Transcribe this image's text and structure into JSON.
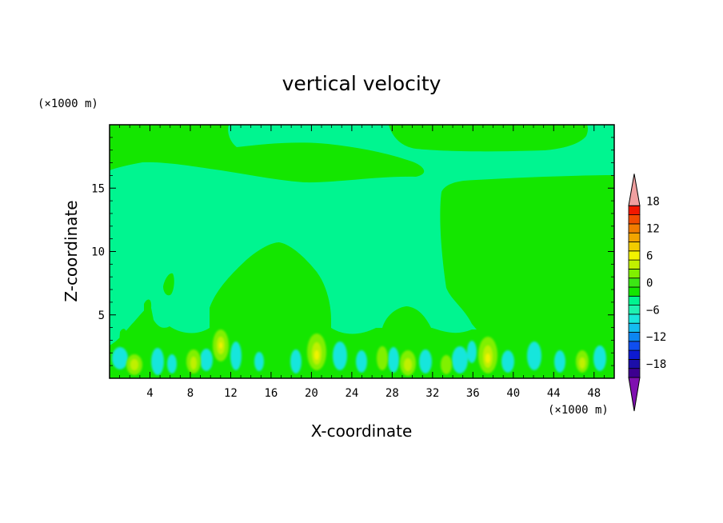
{
  "chart_data": {
    "type": "heatmap",
    "title": "vertical velocity",
    "xlabel": "X-coordinate",
    "ylabel": "Z-coordinate",
    "x_unit": "(×1000 m)",
    "y_unit": "(×1000 m)",
    "xlim": [
      0,
      50
    ],
    "ylim": [
      0,
      20
    ],
    "x_ticks": [
      4,
      8,
      12,
      16,
      20,
      24,
      28,
      32,
      36,
      40,
      44,
      48
    ],
    "x_tick_labels": [
      "4",
      "8",
      "12",
      "16",
      "20",
      "24",
      "28",
      "32",
      "36",
      "40",
      "44",
      "48"
    ],
    "y_ticks": [
      5,
      10,
      15
    ],
    "y_tick_labels": [
      "5",
      "10",
      "15"
    ],
    "colorbar": {
      "range": [
        -20,
        20
      ],
      "step": 2,
      "label_values": [
        -18,
        -12,
        -6,
        0,
        6,
        12,
        18
      ],
      "labels": [
        "−18",
        "−12",
        "−6",
        "0",
        "6",
        "12",
        "18"
      ],
      "colors": [
        "#7f10b0",
        "#3d0090",
        "#1c0ea8",
        "#0d1ad2",
        "#0f4ef0",
        "#0c86f2",
        "#14bcf0",
        "#19e6dc",
        "#1ef2b0",
        "#00f590",
        "#14e600",
        "#3ce614",
        "#80f000",
        "#c0f000",
        "#f2f200",
        "#f2cc00",
        "#f2a400",
        "#f27c00",
        "#f24c00",
        "#f21800",
        "#f0a0a0"
      ]
    },
    "regions": [
      {
        "name": "background",
        "level": 0,
        "color": "#00f590"
      },
      {
        "name": "upper-left-updraft",
        "level": 0.5,
        "x": [
          8,
          22
        ],
        "z": [
          16,
          20
        ],
        "color": "#14e600"
      },
      {
        "name": "upper-right-updraft",
        "level": 0.5,
        "x": [
          29,
          47
        ],
        "z": [
          18,
          20
        ],
        "color": "#14e600"
      },
      {
        "name": "right-updraft-column",
        "level": 0.5,
        "x": [
          33,
          50
        ],
        "z": [
          0,
          16
        ],
        "color": "#14e600"
      },
      {
        "name": "central-dome",
        "level": 0.5,
        "x": [
          10,
          22
        ],
        "z": [
          0,
          10.5
        ],
        "color": "#14e600"
      },
      {
        "name": "dome-28",
        "level": 0.5,
        "x": [
          27,
          31
        ],
        "z": [
          0,
          5.6
        ],
        "color": "#14e600"
      },
      {
        "name": "low-level-cells",
        "level": 4,
        "x": [
          1,
          48
        ],
        "z": [
          0,
          3.5
        ],
        "color": "#c0f000"
      }
    ]
  }
}
